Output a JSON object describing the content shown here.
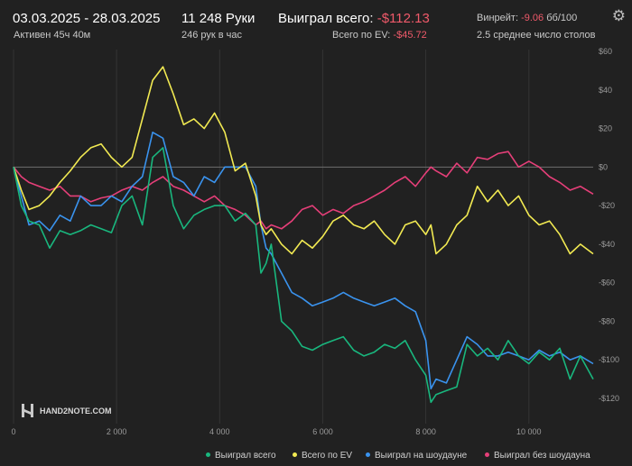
{
  "header": {
    "date_range": "03.03.2025 - 28.03.2025",
    "active": "Активен 45ч 40м",
    "hands": "11 248 Руки",
    "hands_per_hour": "246 рук в час",
    "won_total_label": "Выиграл всего:",
    "won_total_value": "-$112.13",
    "ev_total_label": "Всего по EV:",
    "ev_total_value": "-$45.72",
    "winrate_label": "Винрейт:",
    "winrate_value": "-9.06",
    "winrate_unit": "бб/100",
    "avg_tables": "2.5 среднее число столов",
    "settings_icon": "gear-icon"
  },
  "watermark": {
    "logo_text": "HAND2NOTE.COM"
  },
  "legend": {
    "items": [
      {
        "label": "Выиграл всего",
        "color": "#19b77e"
      },
      {
        "label": "Всего по EV",
        "color": "#f2ea52"
      },
      {
        "label": "Выиграл на шоудауне",
        "color": "#3a93ee"
      },
      {
        "label": "Выиграл без шоудауна",
        "color": "#e63f79"
      }
    ]
  },
  "chart_data": {
    "type": "line",
    "xlabel": "",
    "ylabel": "",
    "xlim": [
      0,
      11248
    ],
    "ylim": [
      -125,
      60
    ],
    "x_ticks": [
      0,
      2000,
      4000,
      6000,
      8000,
      10000
    ],
    "x_tick_labels": [
      "0",
      "2 000",
      "4 000",
      "6 000",
      "8 000",
      "10 000"
    ],
    "y_ticks": [
      60,
      40,
      20,
      0,
      -20,
      -40,
      -60,
      -80,
      -100,
      -120
    ],
    "y_tick_labels": [
      "$60",
      "$40",
      "$20",
      "$0",
      "-$20",
      "-$40",
      "-$60",
      "-$80",
      "-$100",
      "-$120"
    ],
    "grid": "vertical lines at x ticks, zero line",
    "legend_position": "bottom",
    "series": [
      {
        "name": "Выиграл всего",
        "color": "#19b77e",
        "x": [
          0,
          150,
          300,
          500,
          700,
          900,
          1100,
          1300,
          1500,
          1700,
          1900,
          2100,
          2300,
          2500,
          2700,
          2900,
          3100,
          3300,
          3500,
          3700,
          3900,
          4100,
          4300,
          4500,
          4700,
          4800,
          4900,
          5000,
          5200,
          5400,
          5600,
          5800,
          6000,
          6200,
          6400,
          6600,
          6800,
          7000,
          7200,
          7400,
          7600,
          7800,
          8000,
          8100,
          8200,
          8400,
          8600,
          8800,
          9000,
          9200,
          9400,
          9600,
          9800,
          10000,
          10200,
          10400,
          10600,
          10800,
          11000,
          11248
        ],
        "y": [
          0,
          -20,
          -28,
          -30,
          -42,
          -33,
          -35,
          -33,
          -30,
          -32,
          -34,
          -20,
          -15,
          -30,
          5,
          10,
          -20,
          -32,
          -25,
          -22,
          -20,
          -20,
          -28,
          -24,
          -30,
          -55,
          -50,
          -40,
          -80,
          -85,
          -93,
          -95,
          -92,
          -90,
          -88,
          -95,
          -98,
          -96,
          -92,
          -94,
          -90,
          -100,
          -108,
          -122,
          -118,
          -116,
          -114,
          -92,
          -98,
          -94,
          -100,
          -90,
          -98,
          -102,
          -96,
          -100,
          -94,
          -110,
          -98,
          -110
        ]
      },
      {
        "name": "Всего по EV",
        "color": "#f2ea52",
        "x": [
          0,
          150,
          300,
          500,
          700,
          900,
          1100,
          1300,
          1500,
          1700,
          1900,
          2100,
          2300,
          2500,
          2700,
          2900,
          3100,
          3300,
          3500,
          3700,
          3900,
          4100,
          4300,
          4500,
          4700,
          4800,
          4900,
          5000,
          5200,
          5400,
          5600,
          5800,
          6000,
          6200,
          6400,
          6600,
          6800,
          7000,
          7200,
          7400,
          7600,
          7800,
          8000,
          8100,
          8200,
          8400,
          8600,
          8800,
          9000,
          9200,
          9400,
          9600,
          9800,
          10000,
          10200,
          10400,
          10600,
          10800,
          11000,
          11248
        ],
        "y": [
          0,
          -12,
          -22,
          -20,
          -15,
          -8,
          -2,
          5,
          10,
          12,
          5,
          0,
          5,
          25,
          45,
          52,
          38,
          22,
          25,
          20,
          28,
          18,
          -2,
          2,
          -15,
          -30,
          -35,
          -32,
          -40,
          -45,
          -38,
          -42,
          -36,
          -28,
          -25,
          -30,
          -32,
          -28,
          -35,
          -40,
          -30,
          -28,
          -35,
          -30,
          -45,
          -40,
          -30,
          -25,
          -10,
          -18,
          -12,
          -20,
          -15,
          -25,
          -30,
          -28,
          -35,
          -45,
          -40,
          -45
        ]
      },
      {
        "name": "Выиграл на шоудауне",
        "color": "#3a93ee",
        "x": [
          0,
          150,
          300,
          500,
          700,
          900,
          1100,
          1300,
          1500,
          1700,
          1900,
          2100,
          2300,
          2500,
          2700,
          2900,
          3100,
          3300,
          3500,
          3700,
          3900,
          4100,
          4300,
          4500,
          4700,
          4800,
          4900,
          5000,
          5200,
          5400,
          5600,
          5800,
          6000,
          6200,
          6400,
          6600,
          6800,
          7000,
          7200,
          7400,
          7600,
          7800,
          8000,
          8100,
          8200,
          8400,
          8600,
          8800,
          9000,
          9200,
          9400,
          9600,
          9800,
          10000,
          10200,
          10400,
          10600,
          10800,
          11000,
          11248
        ],
        "y": [
          0,
          -15,
          -30,
          -28,
          -33,
          -25,
          -28,
          -15,
          -20,
          -20,
          -15,
          -18,
          -10,
          -5,
          18,
          15,
          -5,
          -8,
          -15,
          -5,
          -8,
          0,
          0,
          0,
          -10,
          -30,
          -42,
          -45,
          -55,
          -65,
          -68,
          -72,
          -70,
          -68,
          -65,
          -68,
          -70,
          -72,
          -70,
          -68,
          -72,
          -75,
          -90,
          -115,
          -110,
          -112,
          -100,
          -88,
          -92,
          -98,
          -98,
          -96,
          -98,
          -100,
          -95,
          -98,
          -96,
          -100,
          -98,
          -102
        ]
      },
      {
        "name": "Выиграл без шоудауна",
        "color": "#e63f79",
        "x": [
          0,
          150,
          300,
          500,
          700,
          900,
          1100,
          1300,
          1500,
          1700,
          1900,
          2100,
          2300,
          2500,
          2700,
          2900,
          3100,
          3300,
          3500,
          3700,
          3900,
          4100,
          4300,
          4500,
          4700,
          4800,
          4900,
          5000,
          5200,
          5400,
          5600,
          5800,
          6000,
          6200,
          6400,
          6600,
          6800,
          7000,
          7200,
          7400,
          7600,
          7800,
          8000,
          8100,
          8200,
          8400,
          8600,
          8800,
          9000,
          9200,
          9400,
          9600,
          9800,
          10000,
          10200,
          10400,
          10600,
          10800,
          11000,
          11248
        ],
        "y": [
          0,
          -5,
          -8,
          -10,
          -12,
          -10,
          -15,
          -15,
          -18,
          -16,
          -15,
          -12,
          -10,
          -12,
          -8,
          -5,
          -10,
          -12,
          -15,
          -18,
          -15,
          -20,
          -22,
          -25,
          -30,
          -28,
          -32,
          -30,
          -32,
          -28,
          -22,
          -20,
          -25,
          -22,
          -24,
          -20,
          -18,
          -15,
          -12,
          -8,
          -5,
          -10,
          -3,
          0,
          -2,
          -5,
          2,
          -3,
          5,
          4,
          7,
          8,
          0,
          3,
          0,
          -5,
          -8,
          -12,
          -10,
          -14
        ]
      }
    ]
  }
}
